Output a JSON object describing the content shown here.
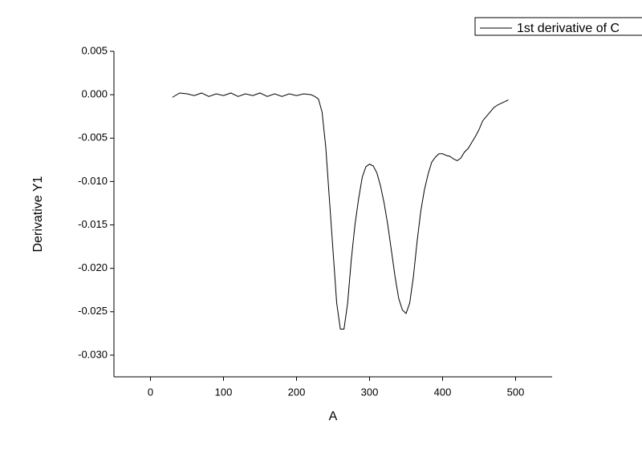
{
  "chart_data": {
    "type": "line",
    "x_label": "A",
    "y_label": "Derivative Y1",
    "xlim": [
      -50,
      550
    ],
    "xticks": [
      0,
      100,
      200,
      300,
      400,
      500
    ],
    "ylim": [
      -0.0325,
      0.005
    ],
    "yticks": [
      0.005,
      {
        "value": 0,
        "label": "0.000"
      },
      -0.005,
      {
        "value": -0.01,
        "label": "-0.010"
      },
      -0.015,
      {
        "value": -0.02,
        "label": "-0.020"
      },
      -0.025,
      {
        "value": -0.03,
        "label": "-0.030"
      }
    ],
    "legend": "top-right",
    "series": [
      {
        "name": "1st derivative of C",
        "color": "#000000",
        "x": [
          30,
          40,
          50,
          60,
          70,
          80,
          90,
          100,
          110,
          120,
          130,
          140,
          150,
          160,
          170,
          180,
          190,
          200,
          210,
          220,
          225,
          230,
          235,
          240,
          245,
          250,
          255,
          260,
          265,
          270,
          275,
          280,
          285,
          290,
          295,
          300,
          305,
          310,
          315,
          320,
          325,
          330,
          335,
          340,
          345,
          350,
          355,
          360,
          365,
          370,
          375,
          380,
          385,
          390,
          395,
          400,
          405,
          410,
          415,
          420,
          425,
          430,
          435,
          440,
          445,
          450,
          455,
          460,
          465,
          470,
          475,
          480,
          485,
          490
        ],
        "values": [
          -0.0003,
          0.0002,
          0.0001,
          -0.0001,
          0.0002,
          -0.0002,
          0.0001,
          -0.0001,
          0.0002,
          -0.0002,
          0.0001,
          -0.0001,
          0.0002,
          -0.0002,
          0.0001,
          -0.0002,
          0.0001,
          -0.0001,
          0.0001,
          0.0,
          -0.0002,
          -0.0005,
          -0.002,
          -0.006,
          -0.012,
          -0.018,
          -0.024,
          -0.027,
          -0.027,
          -0.024,
          -0.019,
          -0.015,
          -0.012,
          -0.0095,
          -0.0083,
          -0.008,
          -0.0082,
          -0.009,
          -0.0105,
          -0.0125,
          -0.015,
          -0.018,
          -0.021,
          -0.0235,
          -0.0248,
          -0.0252,
          -0.024,
          -0.021,
          -0.017,
          -0.0135,
          -0.011,
          -0.0092,
          -0.0078,
          -0.0072,
          -0.0068,
          -0.0068,
          -0.007,
          -0.0071,
          -0.0074,
          -0.0076,
          -0.0073,
          -0.0066,
          -0.0062,
          -0.0055,
          -0.0048,
          -0.004,
          -0.003,
          -0.0025,
          -0.002,
          -0.0015,
          -0.0012,
          -0.001,
          -0.0008,
          -0.0006
        ]
      }
    ]
  }
}
